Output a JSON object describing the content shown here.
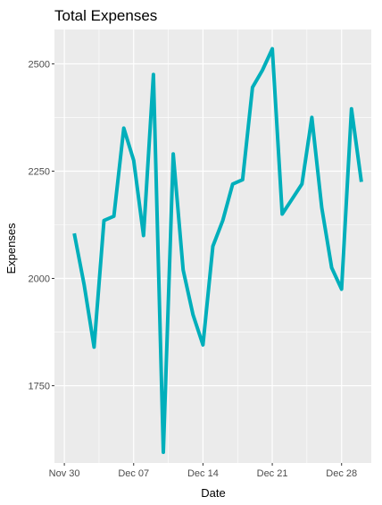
{
  "chart_data": {
    "type": "line",
    "title": "Total Expenses",
    "xlabel": "Date",
    "ylabel": "Expenses",
    "x_tick_labels": [
      "Nov 30",
      "Dec 07",
      "Dec 14",
      "Dec 21",
      "Dec 28"
    ],
    "x_tick_dates": [
      "2019-11-30",
      "2019-12-07",
      "2019-12-14",
      "2019-12-21",
      "2019-12-28"
    ],
    "y_ticks": [
      1750,
      2000,
      2250,
      2500
    ],
    "xlim": [
      "2019-11-29",
      "2019-12-31"
    ],
    "ylim": [
      1570,
      2580
    ],
    "grid": true,
    "line_color": "#00AFBB",
    "panel_color": "#EBEBEB",
    "series": [
      {
        "x": [
          "2019-12-01",
          "2019-12-02",
          "2019-12-03",
          "2019-12-04",
          "2019-12-05",
          "2019-12-06",
          "2019-12-07",
          "2019-12-08",
          "2019-12-09",
          "2019-12-10",
          "2019-12-11",
          "2019-12-12",
          "2019-12-13",
          "2019-12-14",
          "2019-12-15",
          "2019-12-16",
          "2019-12-17",
          "2019-12-18",
          "2019-12-19",
          "2019-12-20",
          "2019-12-21",
          "2019-12-22",
          "2019-12-23",
          "2019-12-24",
          "2019-12-25",
          "2019-12-26",
          "2019-12-27",
          "2019-12-28",
          "2019-12-29",
          "2019-12-30"
        ],
        "values": [
          2105,
          1985,
          1840,
          2135,
          2145,
          2350,
          2275,
          2100,
          2475,
          1595,
          2290,
          2020,
          1915,
          1845,
          2075,
          2135,
          2220,
          2230,
          2445,
          2485,
          2535,
          2150,
          2185,
          2220,
          2375,
          2165,
          2025,
          1975,
          2395,
          2225
        ]
      }
    ]
  }
}
